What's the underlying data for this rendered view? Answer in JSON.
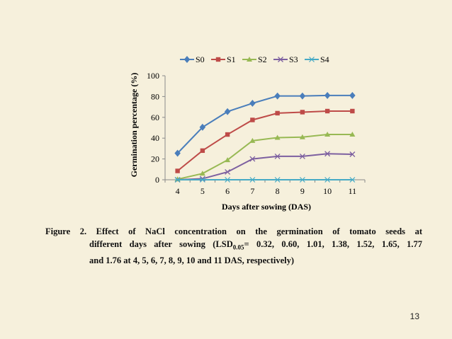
{
  "chart_data": {
    "type": "line",
    "title": "",
    "xlabel": "Days after sowing (DAS)",
    "ylabel": "Germination percentage (%)",
    "x": [
      4,
      5,
      6,
      7,
      8,
      9,
      10,
      11
    ],
    "ylim": [
      0,
      100
    ],
    "yticks": [
      0,
      20,
      40,
      60,
      80,
      100
    ],
    "grid": false,
    "legend_position": "top",
    "series": [
      {
        "name": "S0",
        "color": "#4a7ebb",
        "marker": "diamond",
        "values": [
          25.5,
          50.5,
          65.5,
          73.5,
          80.5,
          80.5,
          81,
          81
        ]
      },
      {
        "name": "S1",
        "color": "#be4b48",
        "marker": "square",
        "values": [
          8.5,
          28,
          43.5,
          57.5,
          64,
          65,
          66,
          66
        ]
      },
      {
        "name": "S2",
        "color": "#98b954",
        "marker": "triangle",
        "values": [
          0.5,
          6,
          19,
          37.5,
          40.5,
          41,
          43.5,
          43.5
        ]
      },
      {
        "name": "S3",
        "color": "#7d60a0",
        "marker": "x",
        "values": [
          0,
          1,
          7.5,
          20,
          22.5,
          22.5,
          25,
          24.5
        ]
      },
      {
        "name": "S4",
        "color": "#46aac5",
        "marker": "star",
        "values": [
          0,
          0,
          0,
          0,
          0,
          0,
          0,
          0
        ]
      }
    ]
  },
  "caption": {
    "lead": "Figure 2. Effect of NaCl concentration on the germination of tomato seeds at",
    "line2_pre": "different days after sowing (LSD",
    "line2_sub": "0.05",
    "line2_post": "= 0.32, 0.60, 1.01, 1.38, 1.52, 1.65, 1.77",
    "line3": "and 1.76 at 4, 5, 6, 7, 8, 9, 10 and 11 DAS, respectively)"
  },
  "page_number": "13"
}
